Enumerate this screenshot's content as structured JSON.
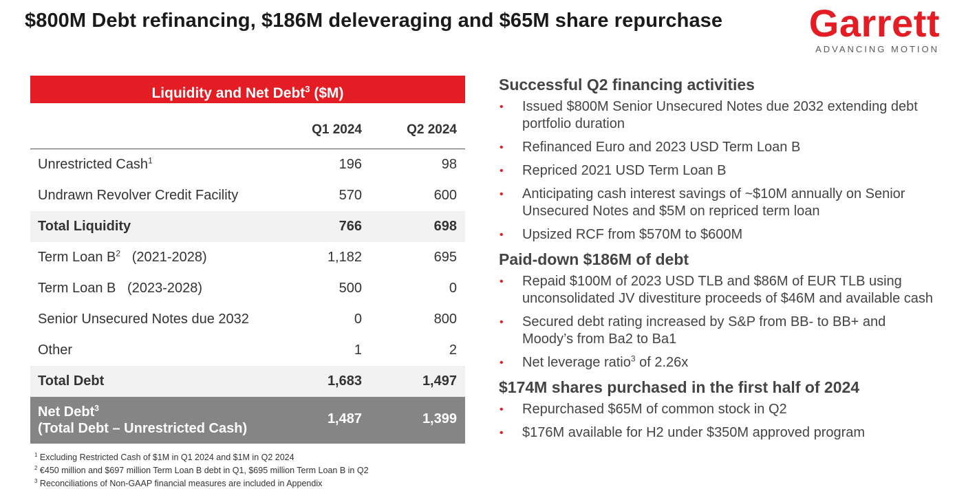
{
  "title": "$800M Debt refinancing, $186M deleveraging and $65M share repurchase",
  "logo": {
    "word": "Garrett",
    "tagline": "ADVANCING MOTION",
    "color": "#e31d23"
  },
  "table": {
    "header": "Liquidity and Net Debt",
    "header_sup": "3",
    "header_unit": " ($M)",
    "col1": "Q1 2024",
    "col2": "Q2 2024",
    "rows": [
      {
        "label": "Unrestricted Cash",
        "sup": "1",
        "q1": "196",
        "q2": "98"
      },
      {
        "label": "Undrawn Revolver Credit Facility",
        "sup": "",
        "q1": "570",
        "q2": "600"
      },
      {
        "label": "Total Liquidity",
        "sup": "",
        "q1": "766",
        "q2": "698"
      },
      {
        "label": "Term Loan B",
        "sup": "2",
        "label_suffix": "   (2021-2028)",
        "q1": "1,182",
        "q2": "695"
      },
      {
        "label": "Term Loan B   (2023-2028)",
        "sup": "",
        "q1": "500",
        "q2": "0"
      },
      {
        "label": "Senior Unsecured Notes due 2032",
        "sup": "",
        "q1": "0",
        "q2": "800"
      },
      {
        "label": "Other",
        "sup": "",
        "q1": "1",
        "q2": "2"
      },
      {
        "label": "Total Debt",
        "sup": "",
        "q1": "1,683",
        "q2": "1,497"
      }
    ],
    "net": {
      "label1": "Net Debt",
      "sup": "3",
      "label2": "(Total Debt – Unrestricted Cash)",
      "q1": "1,487",
      "q2": "1,399"
    }
  },
  "footnotes": [
    {
      "n": "1",
      "text": " Excluding Restricted Cash of $1M in Q1 2024 and $1M in Q2 2024"
    },
    {
      "n": "2",
      "text": " €450 million and $697 million Term Loan B debt  in Q1, $695 million Term Loan B in Q2"
    },
    {
      "n": "3",
      "text": " Reconciliations of Non-GAAP financial measures are included in Appendix"
    }
  ],
  "sections": [
    {
      "heading": "Successful Q2 financing activities",
      "bullets": [
        "Issued $800M Senior Unsecured Notes due 2032 extending debt portfolio duration",
        "Refinanced Euro and 2023 USD Term Loan B",
        "Repriced 2021 USD Term Loan B",
        "Anticipating cash interest savings of ~$10M annually on Senior Unsecured Notes and $5M on repriced term loan",
        "Upsized RCF from $570M to $600M"
      ]
    },
    {
      "heading": "Paid-down $186M of debt",
      "bullets": [
        "Repaid $100M of 2023 USD TLB and $86M of EUR TLB using unconsolidated JV divestiture proceeds of $46M and available cash",
        "Secured debt rating increased by S&P from BB- to BB+ and Moody’s from Ba2 to Ba1"
      ],
      "leverage": {
        "pre": "Net leverage ratio",
        "sup": "3",
        "post": " of 2.26x"
      }
    },
    {
      "heading": "$174M shares purchased in the first half of 2024",
      "bullets": [
        "Repurchased $65M of common stock in Q2",
        "$176M available for H2 under $350M approved program"
      ]
    }
  ]
}
